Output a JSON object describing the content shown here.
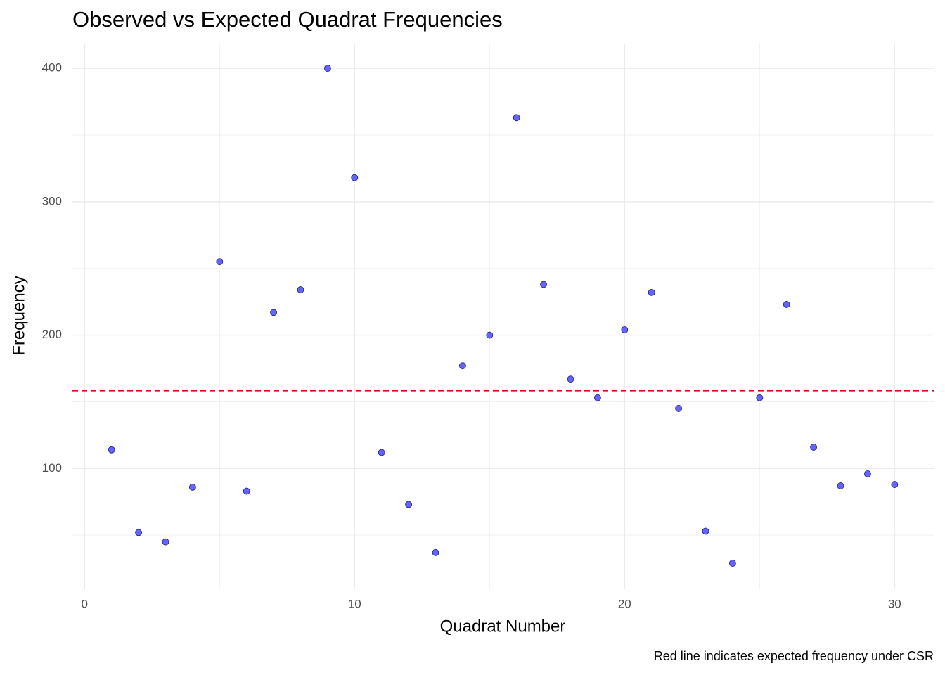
{
  "chart_data": {
    "type": "scatter",
    "title": "Observed vs Expected Quadrat Frequencies",
    "x_label": "Quadrat Number",
    "y_label": "Frequency",
    "caption": "Red line indicates expected frequency under CSR",
    "series": [
      {
        "color": "#6464ff",
        "stroke": "#1a1a8c",
        "x": [
          1,
          2,
          3,
          4,
          5,
          6,
          7,
          8,
          9,
          10,
          11,
          12,
          13,
          14,
          15,
          16,
          17,
          18,
          19,
          20,
          21,
          22,
          23,
          24,
          25,
          26,
          27,
          28,
          29,
          30
        ],
        "values": [
          114,
          52,
          45,
          86,
          255,
          83,
          217,
          234,
          400,
          318,
          112,
          73,
          37,
          177,
          200,
          363,
          238,
          167,
          153,
          204,
          232,
          145,
          53,
          29,
          153,
          223,
          116,
          87,
          96,
          88
        ]
      }
    ],
    "hline": {
      "value": 158.3,
      "color": "#e8001c",
      "dashed": true
    },
    "xlim": [
      -0.45,
      31.45
    ],
    "ylim": [
      9.5,
      418.5
    ],
    "xticks": [
      0,
      10,
      20,
      30
    ],
    "yticks": [
      100,
      200,
      300,
      400
    ],
    "xminor": [
      5,
      15,
      25
    ],
    "yminor": [
      50,
      150,
      250,
      350
    ],
    "grid": true
  }
}
